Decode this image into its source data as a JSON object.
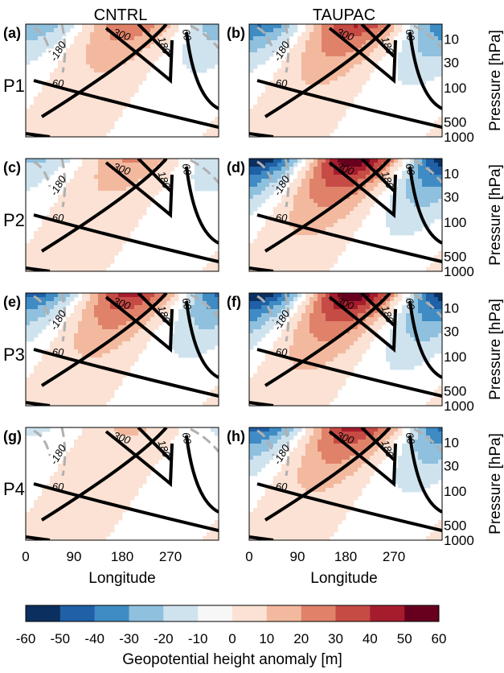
{
  "figure": {
    "column_titles": [
      "CNTRL",
      "TAUPAC"
    ],
    "row_labels": [
      "P1",
      "P2",
      "P3",
      "P4"
    ],
    "panel_labels": [
      "(a)",
      "(b)",
      "(c)",
      "(d)",
      "(e)",
      "(f)",
      "(g)",
      "(h)"
    ],
    "contour_labels": [
      "-180",
      "-60",
      "300",
      "180",
      "60"
    ],
    "x_axis_title": "Longitude",
    "y_axis_title": "Pressure [hPa]",
    "x_ticks": [
      "0",
      "90",
      "180",
      "270"
    ],
    "y_ticks": [
      "10",
      "30",
      "100",
      "500",
      "1000"
    ],
    "colorbar_title": "Geopotential height anomaly [m]",
    "colorbar_ticks": [
      "-60",
      "-50",
      "-40",
      "-30",
      "-20",
      "-10",
      "0",
      "10",
      "20",
      "30",
      "40",
      "50",
      "60"
    ],
    "colorbar_colors": [
      "#0b2f5f",
      "#1f60a6",
      "#3f8cc4",
      "#8fc0de",
      "#cfe3ef",
      "#f7f7f7",
      "#fbe2d4",
      "#f3b99e",
      "#e0826a",
      "#c64b45",
      "#a51d2d",
      "#67001f"
    ],
    "contour_color": "#000000",
    "negative_contour_color": "#b0b0b0"
  },
  "chart_data": {
    "type": "heatmap",
    "xlabel": "Longitude",
    "ylabel": "Pressure [hPa]",
    "xlim": [
      0,
      360
    ],
    "x_ticks": [
      0,
      90,
      180,
      270
    ],
    "y_ticks": [
      10,
      30,
      100,
      500,
      1000
    ],
    "y_scale": "log",
    "ylim": [
      1000,
      5
    ],
    "colorbar": {
      "label": "Geopotential height anomaly [m]",
      "levels": [
        -60,
        -50,
        -40,
        -30,
        -20,
        -10,
        0,
        10,
        20,
        30,
        40,
        50,
        60
      ]
    },
    "panels": [
      {
        "label": "(a)",
        "column": "CNTRL",
        "row": "P1",
        "amplitude": 30
      },
      {
        "label": "(b)",
        "column": "TAUPAC",
        "row": "P1",
        "amplitude": 42
      },
      {
        "label": "(c)",
        "column": "CNTRL",
        "row": "P2",
        "amplitude": 22
      },
      {
        "label": "(d)",
        "column": "TAUPAC",
        "row": "P2",
        "amplitude": 60
      },
      {
        "label": "(e)",
        "column": "CNTRL",
        "row": "P3",
        "amplitude": 45
      },
      {
        "label": "(f)",
        "column": "TAUPAC",
        "row": "P3",
        "amplitude": 60
      },
      {
        "label": "(g)",
        "column": "CNTRL",
        "row": "P4",
        "amplitude": 12
      },
      {
        "label": "(h)",
        "column": "TAUPAC",
        "row": "P4",
        "amplitude": 45
      }
    ],
    "climatology_contours": [
      -180,
      -60,
      60,
      180,
      300
    ]
  }
}
